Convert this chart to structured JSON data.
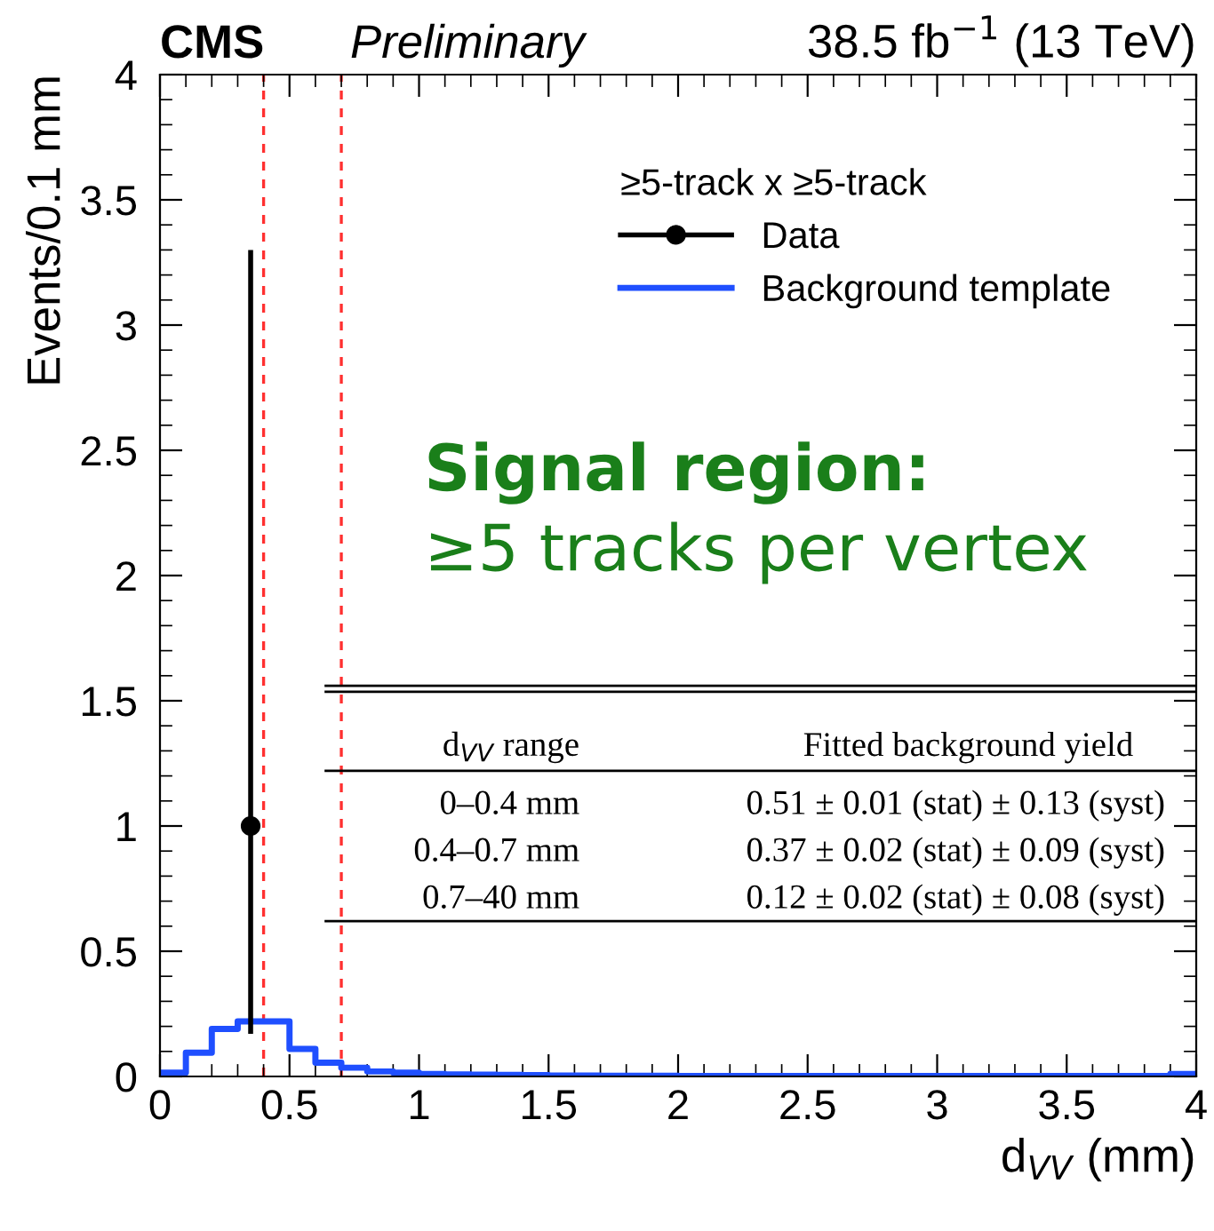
{
  "chart_data": {
    "type": "step",
    "title": "CMS",
    "subtitle": "Preliminary",
    "xlabel": "d$_{VV}$ (mm)",
    "ylabel": "Events/0.1 mm",
    "legend_title": "≥5-track x ≥5-track",
    "xlim": [
      0,
      4
    ],
    "ylim": [
      0,
      4
    ],
    "xticks": [
      0,
      {
        "value": 0.5,
        "label": "0.5"
      },
      1,
      {
        "value": 1.5,
        "label": "1.5"
      },
      2,
      {
        "value": 2.5,
        "label": "2.5"
      },
      3,
      {
        "value": 3.5,
        "label": "3.5"
      },
      4
    ],
    "yticks": [
      0,
      {
        "value": 0.5,
        "label": "0.5"
      },
      1,
      {
        "value": 1.5,
        "label": "1.5"
      },
      2,
      {
        "value": 2.5,
        "label": "2.5"
      },
      3,
      {
        "value": 3.5,
        "label": "3.5"
      },
      4
    ],
    "grid": false,
    "legend": "top right",
    "series": [
      {
        "name": "Data",
        "type": "scatter",
        "color": "#000000",
        "marker": "circle",
        "x": [
          0.35
        ],
        "values": [
          1
        ],
        "errors": [
          [
            0.17,
            3.3
          ]
        ]
      },
      {
        "name": "Background template",
        "color": "#1f4fff",
        "x": [
          0,
          0.1,
          0.2,
          0.3,
          0.4,
          0.5,
          0.6,
          0.7,
          0.8,
          0.9,
          1.0,
          1.1,
          1.2,
          1.3,
          1.4,
          1.5,
          1.6,
          1.7,
          1.8,
          1.9,
          2.0,
          2.1,
          2.2,
          2.3,
          2.4,
          2.5,
          2.6,
          2.7,
          2.8,
          2.9,
          3.0,
          3.1,
          3.2,
          3.3,
          3.4,
          3.5,
          3.6,
          3.7,
          3.8,
          3.9,
          4.0
        ],
        "values": [
          0.015,
          0.095,
          0.19,
          0.22,
          0.22,
          0.11,
          0.055,
          0.035,
          0.02,
          0.015,
          0.01,
          0.008,
          0.007,
          0.006,
          0.005,
          0.004,
          0.004,
          0.003,
          0.003,
          0.003,
          0.002,
          0.002,
          0.002,
          0.002,
          0.002,
          0.002,
          0.002,
          0.002,
          0.002,
          0.002,
          0.002,
          0.002,
          0.002,
          0.002,
          0.002,
          0.002,
          0.002,
          0.002,
          0.002,
          0.01,
          0.01
        ]
      }
    ],
    "ref_lines": [
      {
        "axis": "x",
        "value": 0.4,
        "color": "#ff3030",
        "line_style": "dashed"
      },
      {
        "axis": "x",
        "value": 0.7,
        "color": "#ff3030",
        "line_style": "dashed"
      }
    ],
    "annotations": [
      "38.5 fb$^{−1}$ (13 TeV)",
      "Signal region:",
      "≥5 tracks per vertex",
      "d$_{VV}$ range",
      "Fitted background yield",
      "0–0.4 mm",
      "0.51 ± 0.01 (stat) ± 0.13 (syst)",
      "0.4–0.7 mm",
      "0.37 ± 0.02 (stat) ± 0.09 (syst)",
      "0.7–40 mm",
      "0.12 ± 0.02 (stat) ± 0.08 (syst)"
    ]
  }
}
